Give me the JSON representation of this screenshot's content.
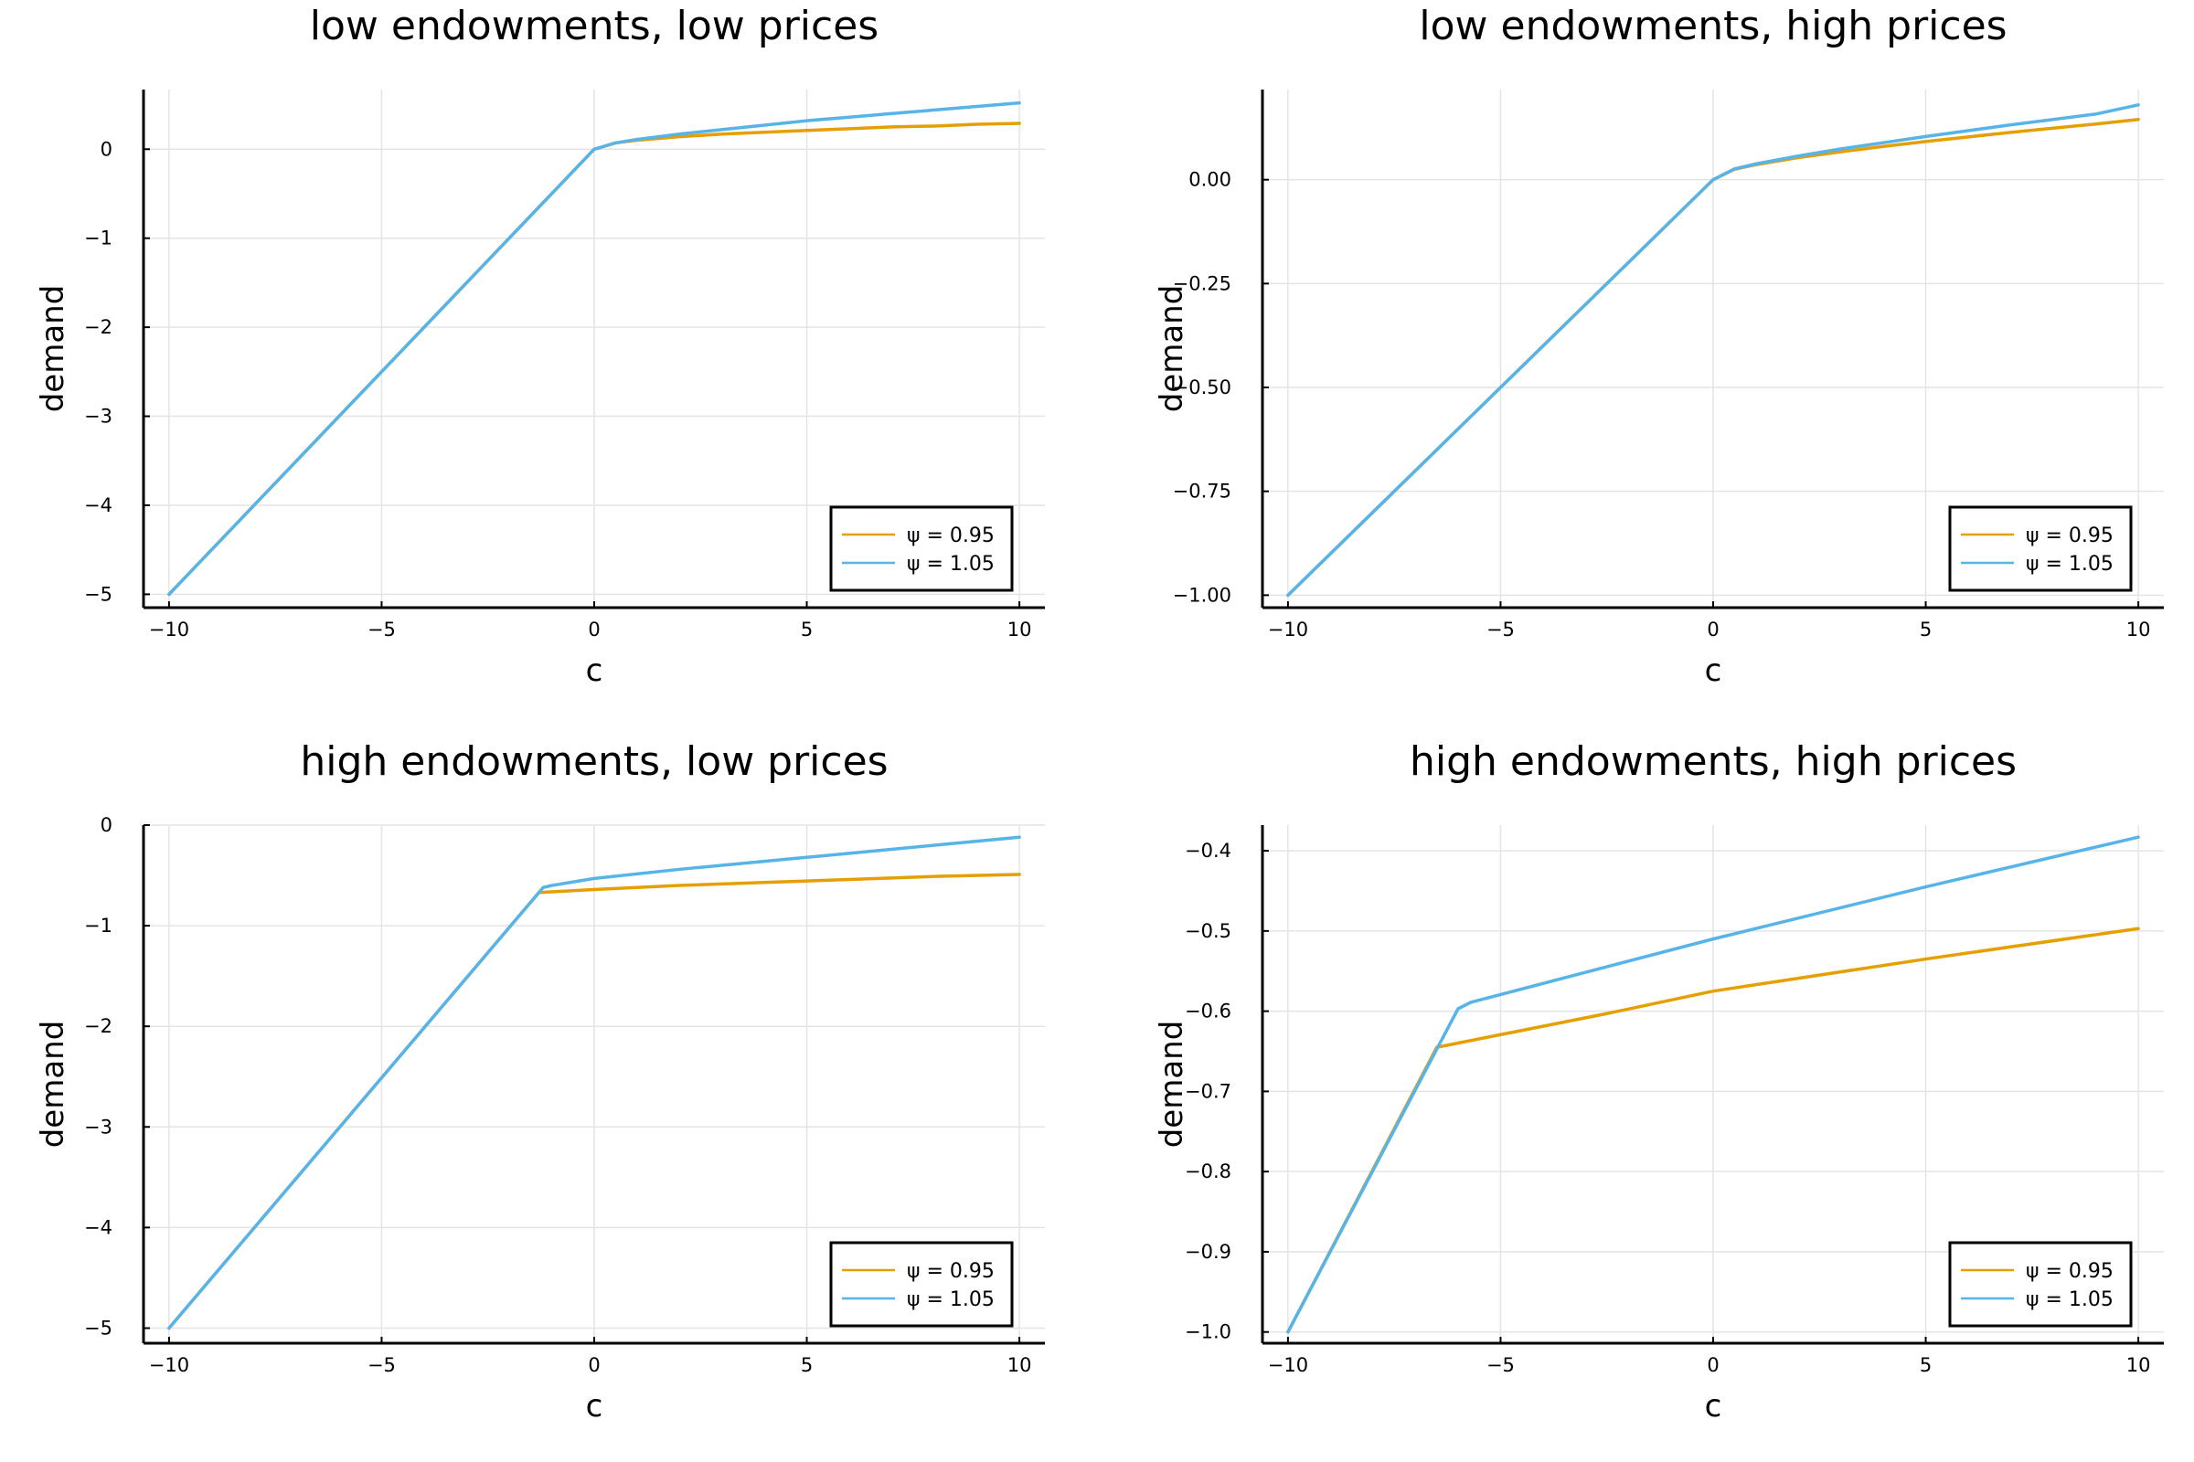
{
  "colors": {
    "psi_095": "#e69f00",
    "psi_105": "#56b4e9"
  },
  "chart_data": [
    {
      "type": "line",
      "title": "low endowments, low prices",
      "xlabel": "c",
      "ylabel": "demand",
      "xlim": [
        -10.6,
        10.6
      ],
      "ylim": [
        -5.15,
        0.67
      ],
      "xticks": [
        -10,
        -5,
        0,
        5,
        10
      ],
      "xtick_labels": [
        "−10",
        "−5",
        "0",
        "5",
        "10"
      ],
      "yticks": [
        -5,
        -4,
        -3,
        -2,
        -1,
        0
      ],
      "ytick_labels": [
        "−5",
        "−4",
        "−3",
        "−2",
        "−1",
        "0"
      ],
      "grid": true,
      "legend_position": "bottom-right",
      "series": [
        {
          "name": "ψ = 0.95",
          "color": "#e69f00",
          "x": [
            -10,
            0,
            0.5,
            1,
            2,
            3,
            4,
            5,
            6,
            7,
            8,
            9,
            10
          ],
          "y": [
            -5,
            0,
            0.07,
            0.1,
            0.14,
            0.17,
            0.19,
            0.21,
            0.23,
            0.25,
            0.26,
            0.28,
            0.29
          ]
        },
        {
          "name": "ψ = 1.05",
          "color": "#56b4e9",
          "x": [
            -10,
            0,
            0.5,
            1,
            2,
            3,
            4,
            5,
            6,
            7,
            8,
            9,
            10
          ],
          "y": [
            -5,
            0,
            0.07,
            0.11,
            0.17,
            0.22,
            0.27,
            0.32,
            0.36,
            0.4,
            0.44,
            0.48,
            0.52
          ]
        }
      ]
    },
    {
      "type": "line",
      "title": "low endowments, high prices",
      "xlabel": "c",
      "ylabel": "demand",
      "xlim": [
        -10.6,
        10.6
      ],
      "ylim": [
        -1.03,
        0.217
      ],
      "xticks": [
        -10,
        -5,
        0,
        5,
        10
      ],
      "xtick_labels": [
        "−10",
        "−5",
        "0",
        "5",
        "10"
      ],
      "yticks": [
        -1,
        -0.75,
        -0.5,
        -0.25,
        0
      ],
      "ytick_labels": [
        "−1.00",
        "−0.75",
        "−0.50",
        "−0.25",
        "0.00"
      ],
      "grid": true,
      "legend_position": "bottom-right",
      "series": [
        {
          "name": "ψ = 0.95",
          "color": "#e69f00",
          "x": [
            -10,
            0,
            0.5,
            1,
            2,
            3,
            4,
            5,
            6,
            7,
            8,
            9,
            10
          ],
          "y": [
            -1,
            0,
            0.025,
            0.036,
            0.053,
            0.067,
            0.08,
            0.092,
            0.103,
            0.114,
            0.124,
            0.134,
            0.145
          ]
        },
        {
          "name": "ψ = 1.05",
          "color": "#56b4e9",
          "x": [
            -10,
            0,
            0.5,
            1,
            2,
            3,
            4,
            5,
            6,
            7,
            8,
            9,
            10
          ],
          "y": [
            -1,
            0,
            0.026,
            0.038,
            0.057,
            0.074,
            0.089,
            0.104,
            0.118,
            0.132,
            0.145,
            0.158,
            0.18
          ]
        }
      ]
    },
    {
      "type": "line",
      "title": "high endowments, low prices",
      "xlabel": "c",
      "ylabel": "demand",
      "xlim": [
        -10.6,
        10.6
      ],
      "ylim": [
        -5.15,
        0.0
      ],
      "xticks": [
        -10,
        -5,
        0,
        5,
        10
      ],
      "xtick_labels": [
        "−10",
        "−5",
        "0",
        "5",
        "10"
      ],
      "yticks": [
        -5,
        -4,
        -3,
        -2,
        -1,
        0
      ],
      "ytick_labels": [
        "−5",
        "−4",
        "−3",
        "−2",
        "−1",
        "0"
      ],
      "grid": true,
      "legend_position": "bottom-right",
      "series": [
        {
          "name": "ψ = 0.95",
          "color": "#e69f00",
          "x": [
            -10,
            -1.3,
            0,
            2,
            4,
            6,
            8,
            10
          ],
          "y": [
            -5,
            -0.67,
            -0.64,
            -0.6,
            -0.57,
            -0.54,
            -0.51,
            -0.49
          ]
        },
        {
          "name": "ψ = 1.05",
          "color": "#56b4e9",
          "x": [
            -10,
            -1.2,
            -1.0,
            0,
            2,
            4,
            6,
            8,
            10
          ],
          "y": [
            -5,
            -0.62,
            -0.6,
            -0.53,
            -0.44,
            -0.36,
            -0.28,
            -0.2,
            -0.12
          ]
        }
      ]
    },
    {
      "type": "line",
      "title": "high endowments, high prices",
      "xlabel": "c",
      "ylabel": "demand",
      "xlim": [
        -10.6,
        10.6
      ],
      "ylim": [
        -1.014,
        -0.368
      ],
      "xticks": [
        -10,
        -5,
        0,
        5,
        10
      ],
      "xtick_labels": [
        "−10",
        "−5",
        "0",
        "5",
        "10"
      ],
      "yticks": [
        -1.0,
        -0.9,
        -0.8,
        -0.7,
        -0.6,
        -0.5,
        -0.4
      ],
      "ytick_labels": [
        "−1.0",
        "−0.9",
        "−0.8",
        "−0.7",
        "−0.6",
        "−0.5",
        "−0.4"
      ],
      "grid": true,
      "legend_position": "bottom-right",
      "series": [
        {
          "name": "ψ = 0.95",
          "color": "#e69f00",
          "x": [
            -10,
            -6.5,
            -2.5,
            0,
            5,
            10
          ],
          "y": [
            -1.0,
            -0.645,
            -0.603,
            -0.575,
            -0.535,
            -0.497
          ]
        },
        {
          "name": "ψ = 1.05",
          "color": "#56b4e9",
          "x": [
            -10,
            -6.0,
            -5.7,
            0,
            5,
            10
          ],
          "y": [
            -1.0,
            -0.597,
            -0.589,
            -0.51,
            -0.445,
            -0.383
          ]
        }
      ]
    }
  ]
}
